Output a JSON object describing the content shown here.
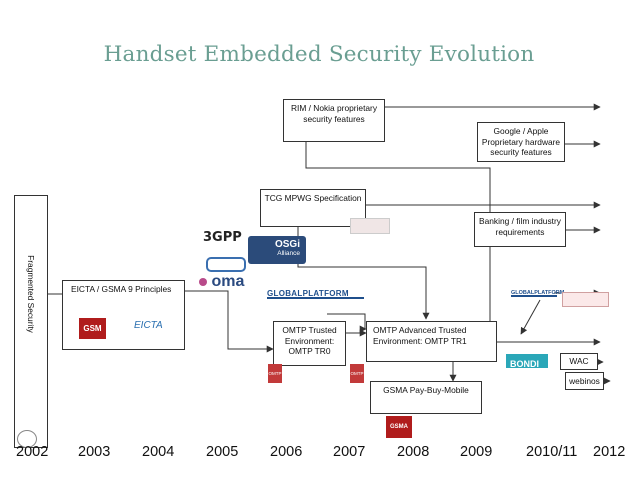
{
  "title": "Handset Embedded Security Evolution",
  "side_label": "Fragmented Security",
  "boxes": {
    "rim": "RIM / Nokia proprietary security features",
    "google": "Google / Apple Proprietary hardware security features",
    "tcg": "TCG MPWG Specification",
    "banking": "Banking / film industry requirements",
    "eicta": "EICTA / GSMA 9 Principles",
    "omtp_tr0": "OMTP Trusted Environment: OMTP TR0",
    "omtp_tr1": "OMTP Advanced Trusted Environment: OMTP TR1",
    "gsma_pbm": "GSMA Pay-Buy-Mobile",
    "wac": "WAC",
    "webinos": "webinos"
  },
  "logos": {
    "osgi_top": "OSGi",
    "osgi_bottom": "Alliance",
    "oma": "oma",
    "globalplatform_1": "GLOBALPLATFORM",
    "globalplatform_2": "GLOBALPLATFORM",
    "bondi": "BONDI",
    "gsm": "GSM",
    "gsma": "GSMA",
    "3gpp": "3GPP",
    "eicta": "EICTA",
    "omtp": "OMTP"
  },
  "years": [
    "2002",
    "2003",
    "2004",
    "2005",
    "2006",
    "2007",
    "2008",
    "2009",
    "2010/11",
    "2012"
  ],
  "colors": {
    "title": "#6a9e92",
    "line": "#333333",
    "gsm_red": "#b01c1c",
    "globalplatform_blue": "#1f4f8c",
    "bondi_teal": "#2aa7b8",
    "omtp_red": "#c23a3a"
  },
  "icons": [
    "arrow-right-icon",
    "3gpp-logo",
    "osgi-logo",
    "etsi-logo",
    "oma-logo",
    "globalplatform-logo",
    "bondi-logo",
    "gsm-logo",
    "eicta-logo",
    "omtp-logo",
    "gsma-logo"
  ]
}
